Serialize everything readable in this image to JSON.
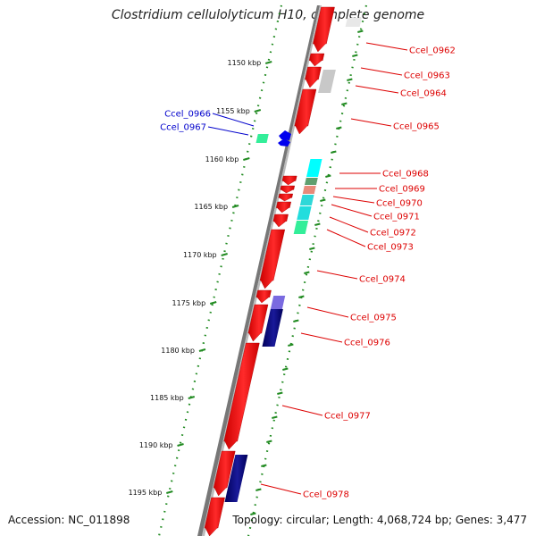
{
  "title": "Clostridium cellulolyticum H10, complete genome",
  "accession_text": "Accession: NC_011898",
  "topology_text": "Topology: circular; Length: 4,068,724 bp; Genes: 3,477",
  "colors": {
    "forward": "#ff0000",
    "reverse_blue": "#0000ee",
    "reverse_navy": "#00007a",
    "label_red": "#dd0000",
    "label_blue": "#0000cc",
    "backbone": "#888888",
    "ticks": "#228b22",
    "cyan": "#00ffff",
    "aqua_green": "#33ee99",
    "grey": "#c8c8c8"
  },
  "kbp_ticks": [
    "1150 kbp",
    "1155 kbp",
    "1160 kbp",
    "1165 kbp",
    "1170 kbp",
    "1175 kbp",
    "1180 kbp",
    "1185 kbp",
    "1190 kbp",
    "1195 kbp"
  ],
  "gene_labels_right": [
    "Ccel_0962",
    "Ccel_0963",
    "Ccel_0964",
    "Ccel_0965",
    "Ccel_0968",
    "Ccel_0969",
    "Ccel_0970",
    "Ccel_0971",
    "Ccel_0972",
    "Ccel_0973",
    "Ccel_0974",
    "Ccel_0975",
    "Ccel_0976",
    "Ccel_0977",
    "Ccel_0978"
  ],
  "gene_labels_left": [
    "Ccel_0966",
    "Ccel_0967"
  ]
}
